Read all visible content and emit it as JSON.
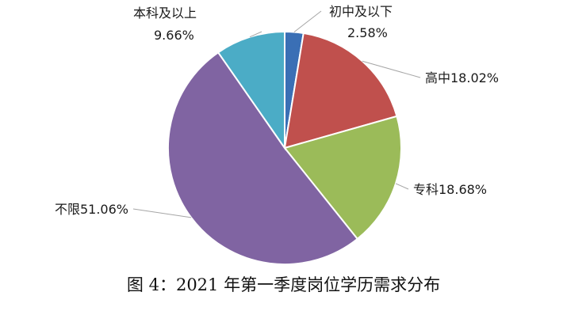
{
  "caption": "图 4：2021 年第一季度岗位学历需求分布",
  "chart_data": {
    "type": "pie",
    "title": "",
    "slices": [
      {
        "name": "初中及以下",
        "value": 2.58,
        "value_label": "2.58%",
        "color": "#3a6fb5"
      },
      {
        "name": "高中",
        "value": 18.02,
        "value_label": "18.02%",
        "color": "#c0504d"
      },
      {
        "name": "专科",
        "value": 18.68,
        "value_label": "18.68%",
        "color": "#9bbb59"
      },
      {
        "name": "不限",
        "value": 51.06,
        "value_label": "51.06%",
        "color": "#8064a2"
      },
      {
        "name": "本科及以上",
        "value": 9.66,
        "value_label": "9.66%",
        "color": "#4bacc6"
      }
    ]
  }
}
